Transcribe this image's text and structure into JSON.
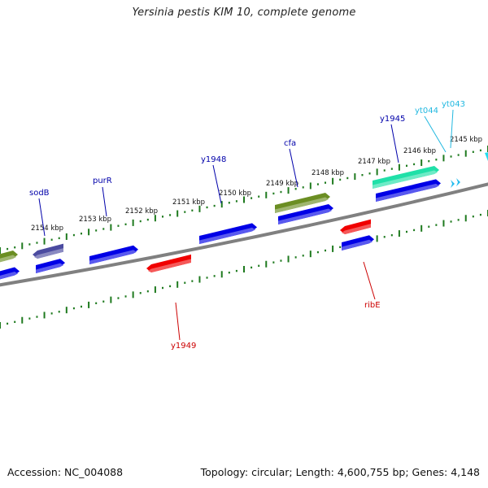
{
  "header": {
    "title": "Yersinia pestis KIM 10, complete genome"
  },
  "footer": {
    "accession": "Accession: NC_004088",
    "stats": "Topology: circular; Length: 4,600,755 bp; Genes: 4,148"
  },
  "map": {
    "colors": {
      "backbone": "#808080",
      "tick": "#1e7a1e",
      "forward_gene": "#0000e6",
      "reverse_gene": "#f00000",
      "olive": "#6b8e23",
      "teal": "#20e0a8",
      "slate": "#4b4ba0",
      "cyan": "#22bbee",
      "forward_label": "#0000aa",
      "reverse_label": "#cc0000",
      "cyan_label": "#22b8e0"
    },
    "scale_labels": [
      "2154 kbp",
      "2153 kbp",
      "2152 kbp",
      "2151 kbp",
      "2150 kbp",
      "2149 kbp",
      "2148 kbp",
      "2147 kbp",
      "2146 kbp",
      "2145 kbp"
    ],
    "gene_labels": [
      {
        "name": "sodB",
        "strand": "forward"
      },
      {
        "name": "purR",
        "strand": "forward"
      },
      {
        "name": "y1948",
        "strand": "forward"
      },
      {
        "name": "cfa",
        "strand": "forward"
      },
      {
        "name": "y1945",
        "strand": "forward"
      },
      {
        "name": "yt044",
        "strand": "cyan"
      },
      {
        "name": "yt043",
        "strand": "cyan"
      },
      {
        "name": "y1949",
        "strand": "reverse"
      },
      {
        "name": "ribE",
        "strand": "reverse"
      }
    ]
  }
}
